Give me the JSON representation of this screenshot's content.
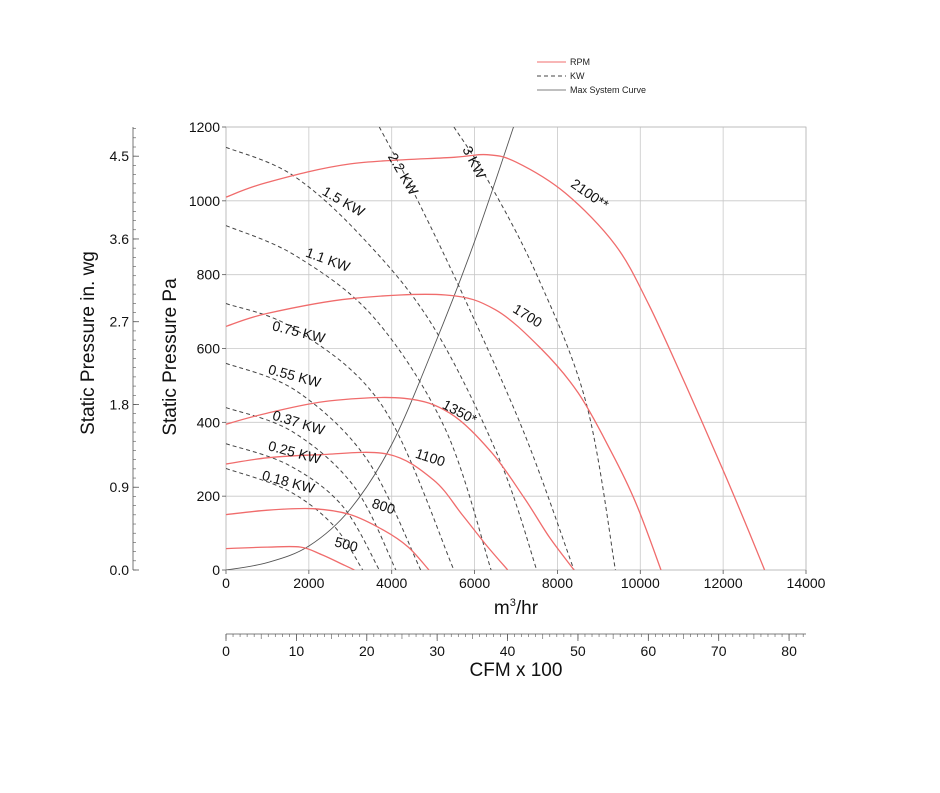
{
  "legend": {
    "rpm": "RPM",
    "kw": "KW",
    "system": "Max System Curve"
  },
  "colors": {
    "rpm": "#f06c6c",
    "kw": "#444444",
    "system": "#555555",
    "grid": "#c8c8c8",
    "axis": "#555555"
  },
  "axes": {
    "main_x_label": "m³/hr",
    "main_x_label_base": "m",
    "main_x_label_sup": "3",
    "main_x_label_tail": "/hr",
    "pa_label": "Static Pressure Pa",
    "inwg_label": "Static Pressure in. wg",
    "cfm_label": "CFM x 100",
    "x_ticks": [
      "0",
      "2000",
      "4000",
      "6000",
      "8000",
      "10000",
      "12000",
      "14000"
    ],
    "pa_ticks": [
      "0",
      "200",
      "400",
      "600",
      "800",
      "1000",
      "1200"
    ],
    "inwg_ticks": [
      "0.0",
      "0.9",
      "1.8",
      "2.7",
      "3.6",
      "4.5"
    ],
    "cfm_ticks": [
      "0",
      "10",
      "20",
      "30",
      "40",
      "50",
      "60",
      "70",
      "80"
    ]
  },
  "chart_data": {
    "type": "line",
    "xlabel": "m³/hr",
    "ylabel": "Static Pressure Pa",
    "xlim": [
      0,
      14000
    ],
    "ylim": [
      0,
      1200
    ],
    "grid": true,
    "legend_position": "top-right",
    "secondary_axes": {
      "left_inwg": {
        "label": "Static Pressure in. wg",
        "ticks": [
          0.0,
          0.9,
          1.8,
          2.7,
          3.6,
          4.5
        ]
      },
      "bottom_cfm": {
        "label": "CFM x 100",
        "ticks": [
          0,
          10,
          20,
          30,
          40,
          50,
          60,
          70,
          80
        ]
      }
    },
    "rpm_series": [
      {
        "label": "500",
        "points": [
          [
            0,
            58
          ],
          [
            1000,
            62
          ],
          [
            1800,
            62
          ],
          [
            2300,
            42
          ],
          [
            2800,
            16
          ],
          [
            3100,
            0
          ]
        ],
        "label_at": [
          2600,
          65
        ],
        "label_rot": 15
      },
      {
        "label": "800",
        "points": [
          [
            0,
            150
          ],
          [
            1000,
            162
          ],
          [
            2100,
            166
          ],
          [
            3000,
            150
          ],
          [
            3800,
            108
          ],
          [
            4400,
            62
          ],
          [
            4900,
            0
          ]
        ],
        "label_at": [
          3500,
          170
        ],
        "label_rot": 18
      },
      {
        "label": "1100",
        "points": [
          [
            0,
            287
          ],
          [
            1000,
            304
          ],
          [
            2200,
            312
          ],
          [
            3900,
            314
          ],
          [
            5000,
            245
          ],
          [
            5700,
            150
          ],
          [
            6300,
            65
          ],
          [
            6800,
            0
          ]
        ],
        "label_at": [
          4550,
          305
        ],
        "label_rot": 18
      },
      {
        "label": "1350*",
        "points": [
          [
            0,
            395
          ],
          [
            1000,
            425
          ],
          [
            2500,
            458
          ],
          [
            4300,
            465
          ],
          [
            5400,
            425
          ],
          [
            6400,
            320
          ],
          [
            7200,
            195
          ],
          [
            7800,
            90
          ],
          [
            8400,
            0
          ]
        ],
        "label_at": [
          5200,
          440
        ],
        "label_rot": 28
      },
      {
        "label": "1700",
        "points": [
          [
            0,
            660
          ],
          [
            1000,
            695
          ],
          [
            3000,
            735
          ],
          [
            5300,
            745
          ],
          [
            6500,
            705
          ],
          [
            7600,
            600
          ],
          [
            8500,
            480
          ],
          [
            9300,
            320
          ],
          [
            9900,
            180
          ],
          [
            10500,
            0
          ]
        ],
        "label_at": [
          6900,
          700
        ],
        "label_rot": 32
      },
      {
        "label": "2100**",
        "points": [
          [
            0,
            1010
          ],
          [
            1000,
            1050
          ],
          [
            3000,
            1100
          ],
          [
            5500,
            1118
          ],
          [
            6300,
            1125
          ],
          [
            7000,
            1105
          ],
          [
            8200,
            1020
          ],
          [
            9400,
            880
          ],
          [
            10200,
            720
          ],
          [
            11100,
            500
          ],
          [
            12000,
            270
          ],
          [
            12600,
            110
          ],
          [
            13000,
            0
          ]
        ],
        "label_at": [
          8300,
          1040
        ],
        "label_rot": 35
      }
    ],
    "kw_series": [
      {
        "label": "0.18 KW",
        "points": [
          [
            0,
            275
          ],
          [
            1500,
            215
          ],
          [
            2600,
            120
          ],
          [
            3300,
            0
          ]
        ],
        "label_at": [
          850,
          245
        ],
        "label_rot": 15
      },
      {
        "label": "0.25 KW",
        "points": [
          [
            0,
            342
          ],
          [
            1500,
            285
          ],
          [
            2800,
            175
          ],
          [
            3700,
            0
          ]
        ],
        "label_at": [
          1000,
          325
        ],
        "label_rot": 15
      },
      {
        "label": "0.37 KW",
        "points": [
          [
            0,
            440
          ],
          [
            1600,
            375
          ],
          [
            3100,
            225
          ],
          [
            4100,
            0
          ]
        ],
        "label_at": [
          1100,
          408
        ],
        "label_rot": 17
      },
      {
        "label": "0.55 KW",
        "points": [
          [
            0,
            560
          ],
          [
            1700,
            485
          ],
          [
            3400,
            300
          ],
          [
            4700,
            0
          ]
        ],
        "label_at": [
          1000,
          532
        ],
        "label_rot": 15
      },
      {
        "label": "0.75 KW",
        "points": [
          [
            0,
            722
          ],
          [
            1700,
            650
          ],
          [
            3800,
            440
          ],
          [
            5500,
            0
          ]
        ],
        "label_at": [
          1100,
          650
        ],
        "label_rot": 14
      },
      {
        "label": "1.1 KW",
        "points": [
          [
            0,
            933
          ],
          [
            1700,
            850
          ],
          [
            3600,
            680
          ],
          [
            5300,
            380
          ],
          [
            6400,
            0
          ]
        ],
        "label_at": [
          1900,
          850
        ],
        "label_rot": 20
      },
      {
        "label": "1.5 KW",
        "points": [
          [
            0,
            1145
          ],
          [
            1600,
            1070
          ],
          [
            3300,
            900
          ],
          [
            5000,
            660
          ],
          [
            6600,
            300
          ],
          [
            7500,
            0
          ]
        ],
        "label_at": [
          2300,
          1018
        ],
        "label_rot": 30
      },
      {
        "label": "2.2 KW",
        "points": [
          [
            3700,
            1200
          ],
          [
            4500,
            1030
          ],
          [
            5700,
            750
          ],
          [
            7200,
            370
          ],
          [
            8400,
            0
          ]
        ],
        "label_at": [
          3900,
          1120
        ],
        "label_rot": 60
      },
      {
        "label": "3 KW",
        "points": [
          [
            5500,
            1200
          ],
          [
            6300,
            1060
          ],
          [
            7500,
            800
          ],
          [
            8700,
            450
          ],
          [
            9400,
            0
          ]
        ],
        "label_at": [
          5700,
          1140
        ],
        "label_rot": 63
      }
    ],
    "system_curve": {
      "label": "Max System Curve",
      "points": [
        [
          0,
          0
        ],
        [
          1000,
          20
        ],
        [
          2000,
          65
        ],
        [
          3000,
          165
        ],
        [
          4000,
          340
        ],
        [
          5000,
          600
        ],
        [
          6000,
          890
        ],
        [
          7000,
          1220
        ]
      ]
    }
  }
}
